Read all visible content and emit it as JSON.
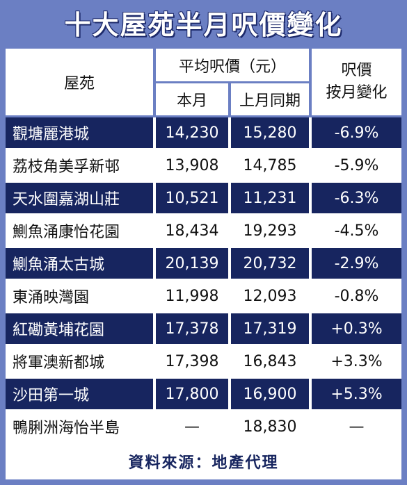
{
  "title": "十大屋苑半月呎價變化",
  "header": {
    "estate": "屋苑",
    "avg_price": "平均呎價（元）",
    "this_month": "本月",
    "last_month": "上月同期",
    "change_line1": "呎價",
    "change_line2": "按月變化"
  },
  "source": "資料來源：地產代理",
  "chart_data": {
    "type": "table",
    "columns": [
      "屋苑",
      "本月",
      "上月同期",
      "呎價按月變化"
    ],
    "rows": [
      {
        "estate": "觀塘麗港城",
        "this_month": "14,230",
        "last_month": "15,280",
        "change": "-6.9%"
      },
      {
        "estate": "荔枝角美孚新邨",
        "this_month": "13,908",
        "last_month": "14,785",
        "change": "-5.9%"
      },
      {
        "estate": "天水圍嘉湖山莊",
        "this_month": "10,521",
        "last_month": "11,231",
        "change": "-6.3%"
      },
      {
        "estate": "鰂魚涌康怡花園",
        "this_month": "18,434",
        "last_month": "19,293",
        "change": "-4.5%"
      },
      {
        "estate": "鰂魚涌太古城",
        "this_month": "20,139",
        "last_month": "20,732",
        "change": "-2.9%"
      },
      {
        "estate": "東涌映灣園",
        "this_month": "11,998",
        "last_month": "12,093",
        "change": "-0.8%"
      },
      {
        "estate": "紅磡黃埔花園",
        "this_month": "17,378",
        "last_month": "17,319",
        "change": "+0.3%"
      },
      {
        "estate": "將軍澳新都城",
        "this_month": "17,398",
        "last_month": "16,843",
        "change": "+3.3%"
      },
      {
        "estate": "沙田第一城",
        "this_month": "17,800",
        "last_month": "16,900",
        "change": "+5.3%"
      },
      {
        "estate": "鴨脷洲海怡半島",
        "this_month": "—",
        "last_month": "18,830",
        "change": "—"
      }
    ]
  }
}
